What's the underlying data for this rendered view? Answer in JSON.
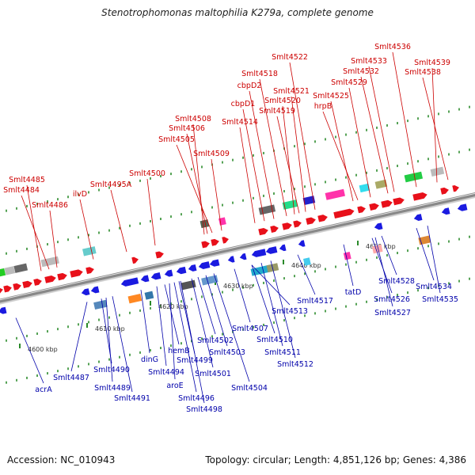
{
  "title": "Stenotrophomonas maltophilia K279a, complete genome",
  "footer": {
    "accession": "Accession: NC_010943",
    "summary": "Topology: circular; Length: 4,851,126 bp; Genes: 4,386"
  },
  "ticks": [
    {
      "label": "4600 kbp",
      "kbp": 4600
    },
    {
      "label": "4610 kbp",
      "kbp": 4610
    },
    {
      "label": "4620 kbp",
      "kbp": 4620
    },
    {
      "label": "4630 kbp",
      "kbp": 4630
    },
    {
      "label": "4640 kbp",
      "kbp": 4640
    },
    {
      "label": "4650 kbp",
      "kbp": 4650
    }
  ],
  "top_labels": [
    "Smlt4485",
    "Smlt4484",
    "Smlt4486",
    "ilvD",
    "Smlt4495A",
    "Smlt4500",
    "Smlt4508",
    "Smlt4506",
    "Smlt4505",
    "Smlt4509",
    "Smlt4514",
    "cbpD1",
    "cbpD2",
    "Smlt4518",
    "Smlt4522",
    "Smlt4520",
    "Smlt4521",
    "Smlt4519",
    "Smlt4525",
    "hrpB",
    "Smlt4529",
    "Smlt4532",
    "Smlt4533",
    "Smlt4536",
    "Smlt4539",
    "Smlt4538"
  ],
  "bottom_labels": [
    "acrA",
    "Smlt4487",
    "Smlt4490",
    "Smlt4489",
    "Smlt4491",
    "dinG",
    "Smlt4494",
    "aroE",
    "hemB",
    "Smlt4499",
    "Smlt4496",
    "Smlt4498",
    "Smlt4501",
    "Smlt4502",
    "Smlt4503",
    "Smlt4504",
    "Smlt4507",
    "Smlt4510",
    "Smlt4511",
    "Smlt4512",
    "Smlt4513",
    "Smlt4517",
    "tatD",
    "Smlt4526",
    "Smlt4527",
    "Smlt4528",
    "Smlt4534",
    "Smlt4535"
  ],
  "colors": {
    "forward": "#e8101a",
    "reverse": "#1a1ae0",
    "backbone": "#888888",
    "tick": "#2a8a2a",
    "label_top": "#cc0000",
    "label_bottom": "#0000aa"
  }
}
